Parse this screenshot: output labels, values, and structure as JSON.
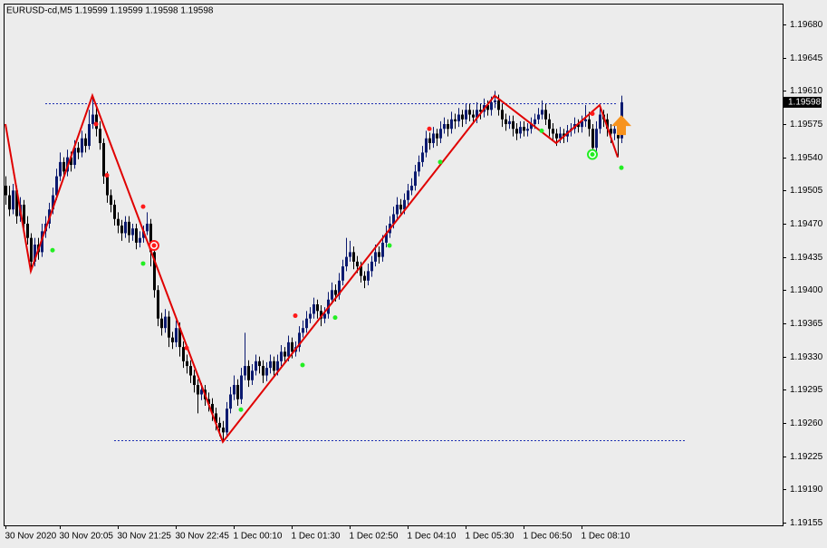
{
  "chart_data": {
    "type": "candlestick",
    "title": "EURUSD-cd,M5  1.19599 1.19599 1.19598 1.19598",
    "up_color": "#0b1a70",
    "down_color": "#000000",
    "background": "#ececec",
    "xlim": [
      -0.5,
      214.5
    ],
    "xticks": [
      {
        "value": 0,
        "label": "30 Nov 2020"
      },
      {
        "value": 15,
        "label": "30 Nov 20:05"
      },
      {
        "value": 31,
        "label": "30 Nov 21:25"
      },
      {
        "value": 47,
        "label": "30 Nov 22:45"
      },
      {
        "value": 63,
        "label": "1 Dec 00:10"
      },
      {
        "value": 79,
        "label": "1 Dec 01:30"
      },
      {
        "value": 95,
        "label": "1 Dec 02:50"
      },
      {
        "value": 111,
        "label": "1 Dec 04:10"
      },
      {
        "value": 127,
        "label": "1 Dec 05:30"
      },
      {
        "value": 143,
        "label": "1 Dec 06:50"
      },
      {
        "value": 159,
        "label": "1 Dec 08:10"
      }
    ],
    "ylim": [
      1.19152,
      1.19702
    ],
    "yticks": [
      1.19155,
      {
        "value": 1.1919,
        "label": "1.19190"
      },
      1.19225,
      {
        "value": 1.1926,
        "label": "1.19260"
      },
      1.19295,
      {
        "value": 1.1933,
        "label": "1.19330"
      },
      1.19365,
      {
        "value": 1.194,
        "label": "1.19400"
      },
      1.19435,
      {
        "value": 1.1947,
        "label": "1.19470"
      },
      1.19505,
      {
        "value": 1.1954,
        "label": "1.19540"
      },
      1.19575,
      {
        "value": 1.1961,
        "label": "1.19610"
      },
      1.19645,
      {
        "value": 1.1968,
        "label": "1.19680"
      }
    ],
    "current_price": 1.19598,
    "open": [
      1.1951,
      1.195,
      1.19485,
      1.19505,
      1.19478,
      1.1949,
      1.1947,
      1.19455,
      1.1943,
      1.19448,
      1.1944,
      1.19462,
      1.1947,
      1.19485,
      1.195,
      1.1952,
      1.19535,
      1.19525,
      1.1954,
      1.19532,
      1.1955,
      1.19545,
      1.1956,
      1.19552,
      1.19575,
      1.19585,
      1.1957,
      1.19555,
      1.1952,
      1.195,
      1.1949,
      1.19475,
      1.19468,
      1.1946,
      1.19472,
      1.19458,
      1.19465,
      1.1945,
      1.19455,
      1.19462,
      1.1947,
      1.1944,
      1.194,
      1.1937,
      1.1936,
      1.19372,
      1.1935,
      1.19345,
      1.1936,
      1.1934,
      1.19325,
      1.1932,
      1.1931,
      1.193,
      1.1929,
      1.19295,
      1.19285,
      1.1928,
      1.1927,
      1.1926,
      1.19255,
      1.1925,
      1.19275,
      1.1929,
      1.193,
      1.19285,
      1.1931,
      1.1932,
      1.19305,
      1.19315,
      1.19325,
      1.1932,
      1.1931,
      1.19318,
      1.19325,
      1.19315,
      1.19325,
      1.19335,
      1.1933,
      1.19345,
      1.19335,
      1.1934,
      1.19355,
      1.1936,
      1.1937,
      1.19375,
      1.19385,
      1.19378,
      1.1937,
      1.19375,
      1.1939,
      1.194,
      1.19395,
      1.1941,
      1.19425,
      1.19435,
      1.1944,
      1.1943,
      1.19425,
      1.19415,
      1.1941,
      1.1942,
      1.1943,
      1.1944,
      1.19435,
      1.1945,
      1.1946,
      1.1947,
      1.1948,
      1.1949,
      1.19485,
      1.19495,
      1.19505,
      1.1951,
      1.19525,
      1.19535,
      1.19545,
      1.1956,
      1.19555,
      1.19565,
      1.1956,
      1.1957,
      1.19575,
      1.1957,
      1.1958,
      1.19578,
      1.19585,
      1.1958,
      1.1959,
      1.19585,
      1.19582,
      1.1959,
      1.19588,
      1.19595,
      1.1959,
      1.19598,
      1.196,
      1.1959,
      1.1958,
      1.19575,
      1.19578,
      1.1957,
      1.19565,
      1.19572,
      1.19568,
      1.1957,
      1.19575,
      1.1958,
      1.19585,
      1.1959,
      1.1958,
      1.1957,
      1.19565,
      1.1956,
      1.19565,
      1.19562,
      1.19568,
      1.1957,
      1.19575,
      1.19572,
      1.19578,
      1.1958,
      1.1957,
      1.1955,
      1.1957,
      1.19585,
      1.1958,
      1.1957,
      1.19565,
      1.1957,
      1.1956
    ],
    "high": [
      1.1952,
      1.1951,
      1.19512,
      1.1951,
      1.19498,
      1.19495,
      1.19478,
      1.1946,
      1.19455,
      1.19455,
      1.1947,
      1.19478,
      1.19492,
      1.19508,
      1.19528,
      1.19545,
      1.1954,
      1.19548,
      1.19546,
      1.19558,
      1.19556,
      1.19568,
      1.19565,
      1.1959,
      1.19605,
      1.19592,
      1.19578,
      1.1956,
      1.19525,
      1.19506,
      1.19495,
      1.19482,
      1.19474,
      1.19478,
      1.19478,
      1.1947,
      1.1947,
      1.19462,
      1.19468,
      1.19482,
      1.19475,
      1.19445,
      1.19405,
      1.19376,
      1.1938,
      1.19378,
      1.19356,
      1.19368,
      1.19366,
      1.19346,
      1.19332,
      1.19326,
      1.19316,
      1.19306,
      1.19302,
      1.193,
      1.19292,
      1.19286,
      1.19276,
      1.19266,
      1.19262,
      1.19282,
      1.19298,
      1.1931,
      1.19306,
      1.19318,
      1.19355,
      1.19326,
      1.19322,
      1.19332,
      1.1933,
      1.19326,
      1.19324,
      1.19332,
      1.1933,
      1.19332,
      1.19342,
      1.1934,
      1.19352,
      1.1935,
      1.19346,
      1.19362,
      1.19368,
      1.19378,
      1.19382,
      1.19392,
      1.1939,
      1.19384,
      1.19382,
      1.19398,
      1.19408,
      1.19406,
      1.19418,
      1.19432,
      1.19455,
      1.19452,
      1.19446,
      1.19436,
      1.1943,
      1.1942,
      1.19428,
      1.19436,
      1.19448,
      1.19446,
      1.19458,
      1.19468,
      1.19478,
      1.19488,
      1.19498,
      1.19496,
      1.19502,
      1.19512,
      1.19518,
      1.19532,
      1.19542,
      1.19552,
      1.19568,
      1.19566,
      1.19572,
      1.1957,
      1.19578,
      1.19582,
      1.1958,
      1.19588,
      1.19586,
      1.19592,
      1.1959,
      1.19596,
      1.19596,
      1.1959,
      1.19598,
      1.19596,
      1.19602,
      1.196,
      1.19604,
      1.1961,
      1.19606,
      1.19596,
      1.19586,
      1.19584,
      1.19584,
      1.19576,
      1.19578,
      1.19578,
      1.19576,
      1.19582,
      1.19586,
      1.19592,
      1.196,
      1.19596,
      1.19586,
      1.19576,
      1.1957,
      1.19572,
      1.1957,
      1.19574,
      1.19576,
      1.19582,
      1.1958,
      1.19584,
      1.19595,
      1.19588,
      1.19575,
      1.19578,
      1.19592,
      1.1959,
      1.19586,
      1.19575,
      1.19576,
      1.19575,
      1.19605
    ],
    "low": [
      1.1949,
      1.19478,
      1.1948,
      1.1947,
      1.19472,
      1.19462,
      1.19448,
      1.1942,
      1.19425,
      1.19432,
      1.19435,
      1.19455,
      1.19465,
      1.1948,
      1.19495,
      1.19515,
      1.19518,
      1.1952,
      1.19525,
      1.19528,
      1.19538,
      1.1954,
      1.19545,
      1.19548,
      1.1957,
      1.19562,
      1.19548,
      1.19512,
      1.19492,
      1.19482,
      1.19468,
      1.1946,
      1.19452,
      1.19455,
      1.1945,
      1.19452,
      1.19443,
      1.19445,
      1.1945,
      1.19458,
      1.19425,
      1.19392,
      1.19362,
      1.19352,
      1.19355,
      1.1934,
      1.19338,
      1.1934,
      1.1933,
      1.19318,
      1.19312,
      1.19302,
      1.19292,
      1.1927,
      1.19284,
      1.19278,
      1.19272,
      1.19262,
      1.19252,
      1.19246,
      1.1924,
      1.19245,
      1.1927,
      1.19284,
      1.19278,
      1.1928,
      1.19305,
      1.19298,
      1.193,
      1.1931,
      1.19312,
      1.19302,
      1.19304,
      1.19312,
      1.19308,
      1.1931,
      1.1932,
      1.19322,
      1.19325,
      1.19328,
      1.1933,
      1.19335,
      1.1935,
      1.19355,
      1.19365,
      1.1937,
      1.1937,
      1.19362,
      1.19365,
      1.1937,
      1.19385,
      1.19388,
      1.1939,
      1.19405,
      1.1942,
      1.1943,
      1.19422,
      1.19418,
      1.19408,
      1.19402,
      1.19405,
      1.19414,
      1.19425,
      1.19428,
      1.1943,
      1.19445,
      1.19455,
      1.19465,
      1.19475,
      1.19478,
      1.1948,
      1.1949,
      1.195,
      1.19505,
      1.1952,
      1.1953,
      1.1954,
      1.19548,
      1.1955,
      1.19552,
      1.19555,
      1.19565,
      1.19562,
      1.19565,
      1.1957,
      1.19572,
      1.19572,
      1.19575,
      1.19578,
      1.19575,
      1.19576,
      1.1958,
      1.19582,
      1.19584,
      1.19584,
      1.19592,
      1.19584,
      1.19572,
      1.19568,
      1.1957,
      1.19562,
      1.19558,
      1.1956,
      1.19562,
      1.19562,
      1.19565,
      1.1957,
      1.19575,
      1.1958,
      1.19574,
      1.19562,
      1.19558,
      1.19552,
      1.19555,
      1.19555,
      1.19556,
      1.19562,
      1.19565,
      1.19566,
      1.19566,
      1.19572,
      1.19562,
      1.19542,
      1.19545,
      1.19565,
      1.19572,
      1.19562,
      1.19555,
      1.19558,
      1.1954,
      1.19555
    ],
    "close": [
      1.195,
      1.19485,
      1.19505,
      1.19478,
      1.1949,
      1.1947,
      1.19455,
      1.1943,
      1.19448,
      1.1944,
      1.19462,
      1.1947,
      1.19485,
      1.195,
      1.1952,
      1.19535,
      1.19525,
      1.1954,
      1.19532,
      1.1955,
      1.19545,
      1.1956,
      1.19552,
      1.19575,
      1.19585,
      1.1957,
      1.19555,
      1.1952,
      1.195,
      1.1949,
      1.19475,
      1.19468,
      1.1946,
      1.19472,
      1.19458,
      1.19465,
      1.1945,
      1.19455,
      1.19462,
      1.1947,
      1.1944,
      1.194,
      1.1937,
      1.1936,
      1.19372,
      1.1935,
      1.19345,
      1.1936,
      1.1934,
      1.19325,
      1.1932,
      1.1931,
      1.193,
      1.1929,
      1.19295,
      1.19285,
      1.1928,
      1.1927,
      1.1926,
      1.19255,
      1.1925,
      1.19275,
      1.1929,
      1.193,
      1.19285,
      1.1931,
      1.1932,
      1.19305,
      1.19315,
      1.19325,
      1.1932,
      1.1931,
      1.19318,
      1.19325,
      1.19315,
      1.19325,
      1.19335,
      1.1933,
      1.19345,
      1.19335,
      1.1934,
      1.19355,
      1.1936,
      1.1937,
      1.19375,
      1.19385,
      1.19378,
      1.1937,
      1.19375,
      1.1939,
      1.194,
      1.19395,
      1.1941,
      1.19425,
      1.19435,
      1.1944,
      1.1943,
      1.19425,
      1.19415,
      1.1941,
      1.1942,
      1.1943,
      1.1944,
      1.19435,
      1.1945,
      1.1946,
      1.1947,
      1.1948,
      1.1949,
      1.19485,
      1.19495,
      1.19505,
      1.1951,
      1.19525,
      1.19535,
      1.19545,
      1.1956,
      1.19555,
      1.19565,
      1.1956,
      1.1957,
      1.19575,
      1.1957,
      1.1958,
      1.19578,
      1.19585,
      1.1958,
      1.1959,
      1.19585,
      1.19582,
      1.1959,
      1.19588,
      1.19595,
      1.1959,
      1.19598,
      1.196,
      1.1959,
      1.1958,
      1.19575,
      1.19578,
      1.1957,
      1.19565,
      1.19572,
      1.19568,
      1.1957,
      1.19575,
      1.1958,
      1.19585,
      1.1959,
      1.1958,
      1.1957,
      1.19565,
      1.1956,
      1.19565,
      1.19562,
      1.19568,
      1.1957,
      1.19575,
      1.19572,
      1.19578,
      1.1958,
      1.1957,
      1.1955,
      1.1957,
      1.19585,
      1.1958,
      1.1957,
      1.19565,
      1.1957,
      1.1956,
      1.19598
    ],
    "levels": [
      {
        "color": "#1a2db0",
        "from": 11,
        "to": 169,
        "value": 1.19597
      },
      {
        "color": "#1a2db0",
        "from": 30,
        "to": 188,
        "value": 1.19242
      }
    ],
    "zigzag": {
      "color": "#e00000",
      "x": [
        0,
        7,
        24,
        60,
        135,
        152,
        164,
        169
      ],
      "values": [
        1.19575,
        1.1942,
        1.19605,
        1.1924,
        1.19605,
        1.19555,
        1.19595,
        1.1954
      ]
    },
    "sell_dots": {
      "color": "#ff1a1a",
      "x": [
        25,
        28,
        38,
        50,
        80,
        117,
        162
      ],
      "values": [
        1.19575,
        1.19521,
        1.19488,
        1.19339,
        1.19373,
        1.1957,
        1.19586
      ]
    },
    "buy_dots": {
      "color": "#22ee22",
      "x": [
        13,
        38,
        65,
        82,
        91,
        106,
        120,
        148,
        170
      ],
      "values": [
        1.19442,
        1.19428,
        1.19274,
        1.19321,
        1.19371,
        1.19447,
        1.19535,
        1.19568,
        1.19529
      ]
    },
    "sell_circles": {
      "color": "#ff1a1a",
      "x": [
        41
      ],
      "values": [
        1.19447
      ]
    },
    "buy_circles": {
      "color": "#22ee22",
      "x": [
        162
      ],
      "values": [
        1.19543
      ]
    },
    "arrows": {
      "color": "#f7931e",
      "x": [
        170
      ],
      "values": [
        1.19573
      ]
    }
  }
}
